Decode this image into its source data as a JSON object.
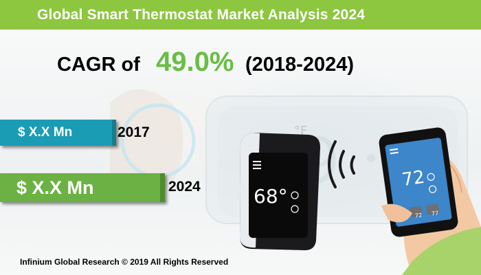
{
  "banner": {
    "title": "Global Smart Thermostat Market Analysis 2024"
  },
  "cagr": {
    "prefix": "CAGR of",
    "value": "49.0%",
    "period": "(2018-2024)"
  },
  "bars": [
    {
      "value": "$ X.X Mn",
      "year": "2017",
      "color": "#1a9cb5"
    },
    {
      "value": "$ X.X Mn",
      "year": "2024",
      "color": "#6cb143"
    }
  ],
  "thermostat": {
    "reading": "68°"
  },
  "wall_display": {
    "unit": "°F"
  },
  "phone": {
    "reading": "72",
    "chip_left": "72",
    "chip_right": "77"
  },
  "footer": {
    "text": "Infinium Global Research © 2019 All Rights Reserved"
  },
  "colors": {
    "banner": "#8dc63f",
    "accent_green": "#6abd45",
    "teal": "#1a9cb5"
  }
}
